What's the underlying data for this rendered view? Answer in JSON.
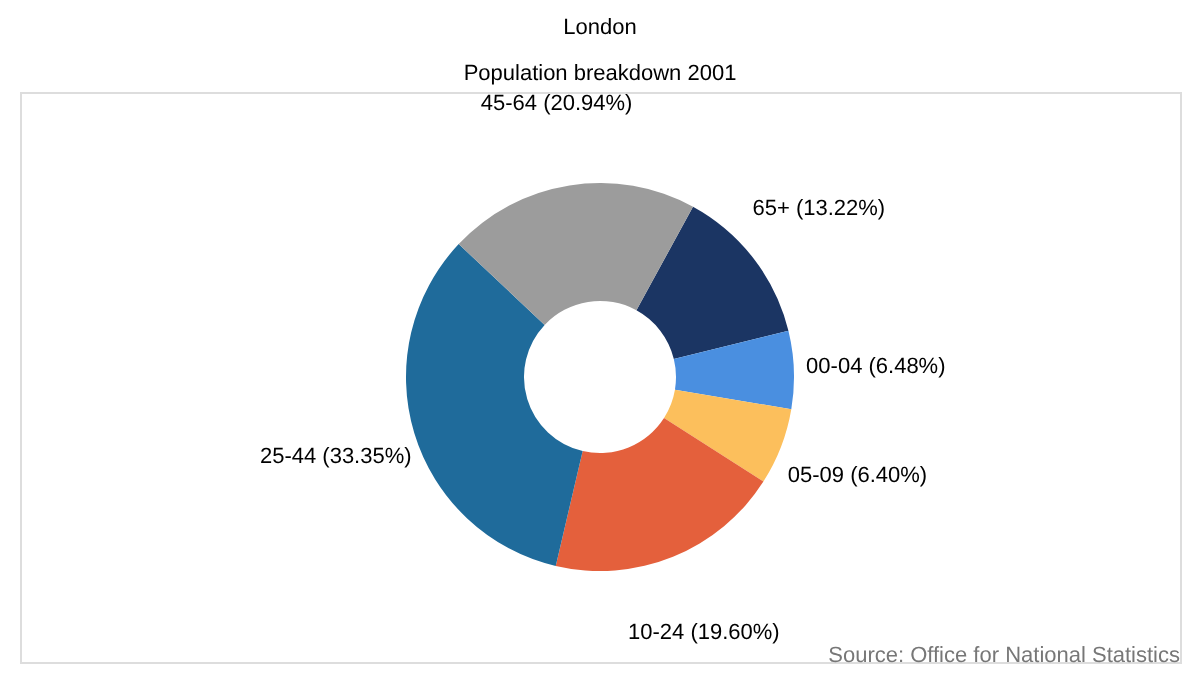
{
  "chart_data": {
    "type": "donut",
    "title": "London",
    "subtitle": "Population breakdown 2001",
    "categories": [
      "65+",
      "00-04",
      "05-09",
      "10-24",
      "25-44",
      "45-64"
    ],
    "values": [
      13.22,
      6.48,
      6.4,
      19.6,
      33.35,
      20.94
    ],
    "colors": [
      "#1b3563",
      "#4a8fe0",
      "#fcbf5c",
      "#e4603c",
      "#1f6b9b",
      "#9c9c9c"
    ],
    "value_labels": [
      "(13.22%)",
      "(6.48%)",
      "(6.40%)",
      "(19.60%)",
      "(33.35%)",
      "(20.94%)"
    ],
    "legend": false,
    "annotations": [
      "Source: Office for National Statistics"
    ]
  }
}
